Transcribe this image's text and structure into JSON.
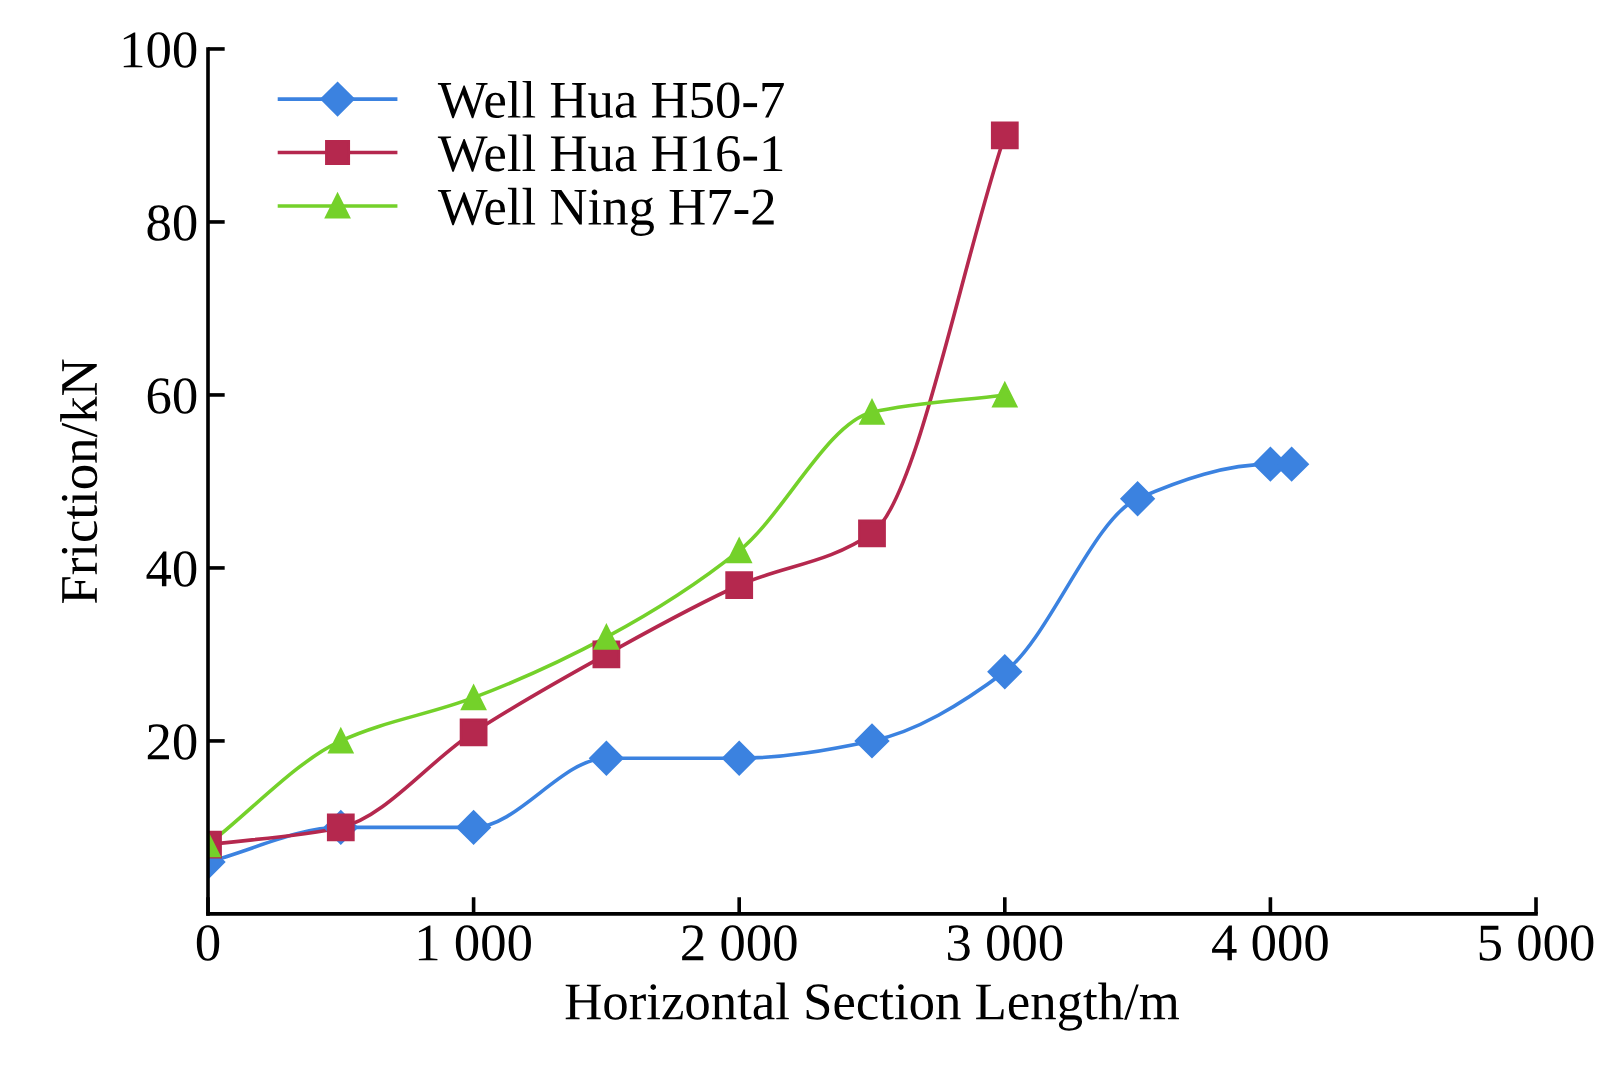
{
  "chart_data": {
    "type": "line",
    "xlabel": "Horizontal Section Length/m",
    "ylabel": "Friction/kN",
    "xlim": [
      0,
      5000
    ],
    "ylim": [
      0,
      100
    ],
    "xticks": [
      0,
      {
        "value": 1000,
        "label": "1 000"
      },
      {
        "value": 2000,
        "label": "2 000"
      },
      {
        "value": 3000,
        "label": "3 000"
      },
      {
        "value": 4000,
        "label": "4 000"
      },
      {
        "value": 5000,
        "label": "5 000"
      }
    ],
    "yticks": [
      20,
      40,
      60,
      80,
      100
    ],
    "grid": false,
    "legend": "top left",
    "series": [
      {
        "name": "Well Hua H50-7",
        "color": "#3b82e0",
        "marker": "diamond",
        "x": [
          0,
          500,
          1000,
          1500,
          2000,
          2500,
          3000,
          3500,
          4000,
          4080
        ],
        "values": [
          6,
          10,
          10,
          18,
          18,
          20,
          28,
          48,
          52,
          52
        ]
      },
      {
        "name": "Well Hua H16-1",
        "color": "#b5284e",
        "marker": "square",
        "x": [
          0,
          500,
          1000,
          1500,
          2000,
          2500,
          3000
        ],
        "values": [
          8,
          10,
          21,
          30,
          38,
          44,
          90
        ]
      },
      {
        "name": "Well Ning H7-2",
        "color": "#74d12a",
        "marker": "triangle",
        "x": [
          0,
          500,
          1000,
          1500,
          2000,
          2500,
          3000
        ],
        "values": [
          8,
          20,
          25,
          32,
          42,
          58,
          60
        ]
      }
    ]
  }
}
